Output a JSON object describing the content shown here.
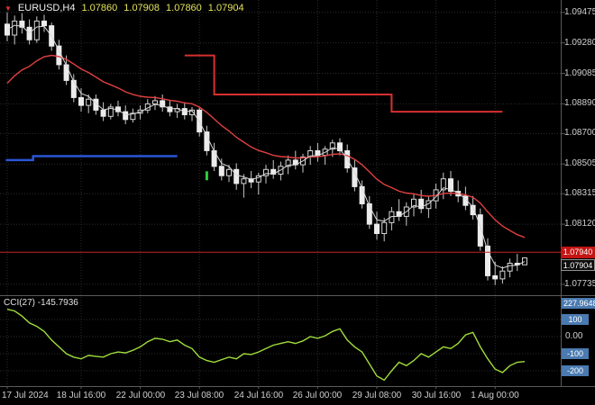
{
  "header": {
    "symbol": "EURUSD,H4",
    "open": "1.07860",
    "high": "1.07908",
    "low": "1.07860",
    "close": "1.07904"
  },
  "price_axis": {
    "labels": [
      {
        "text": "1.09475",
        "price": 1.09475
      },
      {
        "text": "1.09280",
        "price": 1.0928
      },
      {
        "text": "1.09085",
        "price": 1.09085
      },
      {
        "text": "1.08890",
        "price": 1.0889
      },
      {
        "text": "1.08700",
        "price": 1.087
      },
      {
        "text": "1.08505",
        "price": 1.08505
      },
      {
        "text": "1.08315",
        "price": 1.08315
      },
      {
        "text": "1.08120",
        "price": 1.0812
      },
      {
        "text": "1.07735",
        "price": 1.07735
      }
    ],
    "ask_label": {
      "text": "1.07940",
      "price": 1.0794,
      "bg": "#c41414"
    },
    "bid_label": {
      "text": "1.07904",
      "price": 1.07904
    }
  },
  "time_axis": {
    "labels": [
      {
        "text": "17 Jul 2024",
        "idx": 0
      },
      {
        "text": "18 Jul 16:00",
        "idx": 10
      },
      {
        "text": "22 Jul 00:00",
        "idx": 18
      },
      {
        "text": "23 Jul 08:00",
        "idx": 26
      },
      {
        "text": "24 Jul 16:00",
        "idx": 34
      },
      {
        "text": "26 Jul 00:00",
        "idx": 42
      },
      {
        "text": "29 Jul 08:00",
        "idx": 50
      },
      {
        "text": "30 Jul 16:00",
        "idx": 58
      },
      {
        "text": "1 Aug 00:00",
        "idx": 66
      }
    ]
  },
  "cci_panel": {
    "title": "CCI(27)",
    "value": "-145.7936",
    "axis": {
      "max": "227.9648",
      "levels": [
        {
          "text": "100",
          "value": 100,
          "boxed": true
        },
        {
          "text": "0.00",
          "value": 0,
          "boxed": false
        },
        {
          "text": "-100",
          "value": -100,
          "boxed": true
        },
        {
          "text": "-200",
          "value": -200,
          "boxed": true
        }
      ]
    }
  },
  "chart_data": {
    "type": "candlestick",
    "symbol": "EURUSD",
    "timeframe": "H4",
    "ylim": [
      1.077,
      1.0952
    ],
    "candles": [
      [
        1.094,
        1.09475,
        1.0929,
        1.0933
      ],
      [
        1.0933,
        1.09455,
        1.0927,
        1.0942
      ],
      [
        1.0942,
        1.0947,
        1.0934,
        1.0938
      ],
      [
        1.0938,
        1.0943,
        1.0927,
        1.093
      ],
      [
        1.093,
        1.0945,
        1.0928,
        1.0942
      ],
      [
        1.0942,
        1.0946,
        1.0935,
        1.0939
      ],
      [
        1.0939,
        1.0941,
        1.0923,
        1.0926
      ],
      [
        1.0926,
        1.093,
        1.0911,
        1.0914
      ],
      [
        1.0914,
        1.092,
        1.0901,
        1.0904
      ],
      [
        1.0904,
        1.0908,
        1.089,
        1.0893
      ],
      [
        1.0893,
        1.0899,
        1.0884,
        1.0888
      ],
      [
        1.0888,
        1.0895,
        1.0883,
        1.0892
      ],
      [
        1.0892,
        1.0895,
        1.0882,
        1.0885
      ],
      [
        1.0885,
        1.089,
        1.0878,
        1.0881
      ],
      [
        1.0881,
        1.0889,
        1.0879,
        1.0887
      ],
      [
        1.0887,
        1.0891,
        1.0881,
        1.0884
      ],
      [
        1.0884,
        1.0888,
        1.0876,
        1.0879
      ],
      [
        1.0879,
        1.0886,
        1.0877,
        1.0883
      ],
      [
        1.0883,
        1.0888,
        1.0879,
        1.0885
      ],
      [
        1.0885,
        1.0892,
        1.0883,
        1.0889
      ],
      [
        1.0889,
        1.0894,
        1.0885,
        1.0891
      ],
      [
        1.0891,
        1.0895,
        1.0884,
        1.0887
      ],
      [
        1.0887,
        1.0891,
        1.0881,
        1.0884
      ],
      [
        1.0884,
        1.0889,
        1.088,
        1.0886
      ],
      [
        1.0886,
        1.089,
        1.0879,
        1.0882
      ],
      [
        1.0882,
        1.0887,
        1.0878,
        1.0885
      ],
      [
        1.0885,
        1.0887,
        1.0868,
        1.0871
      ],
      [
        1.0871,
        1.0875,
        1.0856,
        1.0859
      ],
      [
        1.0859,
        1.0864,
        1.0846,
        1.0849
      ],
      [
        1.0849,
        1.0854,
        1.084,
        1.0843
      ],
      [
        1.0843,
        1.085,
        1.0839,
        1.0847
      ],
      [
        1.0847,
        1.0851,
        1.0834,
        1.0838
      ],
      [
        1.0838,
        1.0844,
        1.0829,
        1.0841
      ],
      [
        1.0841,
        1.0846,
        1.0835,
        1.0839
      ],
      [
        1.0839,
        1.0845,
        1.0831,
        1.0843
      ],
      [
        1.0843,
        1.085,
        1.0838,
        1.0847
      ],
      [
        1.0847,
        1.0853,
        1.0841,
        1.0844
      ],
      [
        1.0844,
        1.0852,
        1.084,
        1.0849
      ],
      [
        1.0849,
        1.0856,
        1.0844,
        1.0853
      ],
      [
        1.0853,
        1.0859,
        1.0847,
        1.085
      ],
      [
        1.085,
        1.0857,
        1.0845,
        1.0855
      ],
      [
        1.0855,
        1.0862,
        1.085,
        1.0859
      ],
      [
        1.0859,
        1.0864,
        1.0852,
        1.0856
      ],
      [
        1.0856,
        1.0862,
        1.085,
        1.086
      ],
      [
        1.086,
        1.0866,
        1.0855,
        1.0864
      ],
      [
        1.0864,
        1.0867,
        1.0856,
        1.0859
      ],
      [
        1.0859,
        1.0863,
        1.0845,
        1.0848
      ],
      [
        1.0848,
        1.0853,
        1.0833,
        1.0836
      ],
      [
        1.0836,
        1.084,
        1.0822,
        1.0825
      ],
      [
        1.0825,
        1.083,
        1.0809,
        1.0812
      ],
      [
        1.0812,
        1.082,
        1.0802,
        1.0806
      ],
      [
        1.0806,
        1.0816,
        1.0801,
        1.0813
      ],
      [
        1.0813,
        1.0823,
        1.0808,
        1.082
      ],
      [
        1.082,
        1.0828,
        1.0814,
        1.0817
      ],
      [
        1.0817,
        1.0826,
        1.0811,
        1.0823
      ],
      [
        1.0823,
        1.0831,
        1.0817,
        1.0828
      ],
      [
        1.0828,
        1.0834,
        1.0819,
        1.0822
      ],
      [
        1.0822,
        1.083,
        1.0816,
        1.0827
      ],
      [
        1.0827,
        1.0838,
        1.0822,
        1.0834
      ],
      [
        1.0834,
        1.0845,
        1.0828,
        1.0841
      ],
      [
        1.0841,
        1.0846,
        1.083,
        1.0833
      ],
      [
        1.0833,
        1.084,
        1.0826,
        1.083
      ],
      [
        1.083,
        1.0836,
        1.0821,
        1.0824
      ],
      [
        1.0824,
        1.083,
        1.0815,
        1.0818
      ],
      [
        1.0818,
        1.0822,
        1.0795,
        1.0798
      ],
      [
        1.0798,
        1.0803,
        1.0776,
        1.0779
      ],
      [
        1.0779,
        1.0788,
        1.0773,
        1.0777
      ],
      [
        1.0777,
        1.0785,
        1.0774,
        1.0782
      ],
      [
        1.0782,
        1.079,
        1.0778,
        1.0787
      ],
      [
        1.0787,
        1.0793,
        1.0782,
        1.0786
      ],
      [
        1.0786,
        1.07908,
        1.0786,
        1.07904
      ]
    ],
    "overlays": {
      "ma_fast": {
        "alpha": 0.5,
        "seed": 1.094,
        "color": "#d9d9d9",
        "w": 1
      },
      "ma_slow": {
        "alpha": 0.12,
        "seed": 1.0898,
        "color": "#e04040",
        "w": 1.4
      },
      "blue_step": {
        "color": "#2b55d5",
        "width": 2.5,
        "segments": [
          {
            "i0": -0.2,
            "i1": 3.5,
            "price": 1.0853
          },
          {
            "i0": 3.5,
            "i1": 23,
            "price": 1.08555
          }
        ]
      },
      "red_step": {
        "color": "#d73030",
        "width": 2,
        "segments": [
          {
            "i0": 24,
            "i1": 28,
            "price": 1.092
          },
          {
            "i0": 28,
            "i1": 52,
            "price": 1.0895
          },
          {
            "i0": 52,
            "i1": 67,
            "price": 1.0884
          }
        ]
      },
      "price_line": {
        "price": 1.0794,
        "color": "#c22222"
      },
      "marker": {
        "idx": 27,
        "price": 1.0843,
        "color": "#2ecc40"
      }
    },
    "indicator": {
      "name": "CCI",
      "period": 27,
      "value": -145.7936,
      "color": "#a0dd3a",
      "levels": [
        100,
        0,
        -100,
        -200
      ],
      "values": [
        160,
        150,
        120,
        80,
        60,
        30,
        -20,
        -60,
        -100,
        -120,
        -130,
        -110,
        -115,
        -120,
        -100,
        -90,
        -95,
        -80,
        -60,
        -30,
        -10,
        -15,
        -30,
        -20,
        -50,
        -70,
        -120,
        -140,
        -150,
        -135,
        -120,
        -130,
        -100,
        -105,
        -90,
        -70,
        -50,
        -40,
        -30,
        -40,
        -25,
        0,
        -10,
        5,
        30,
        45,
        -20,
        -60,
        -90,
        -160,
        -230,
        -255,
        -200,
        -150,
        -170,
        -140,
        -100,
        -120,
        -90,
        -60,
        -70,
        -40,
        10,
        25,
        -60,
        -130,
        -190,
        -210,
        -170,
        -150,
        -145.79
      ]
    }
  }
}
